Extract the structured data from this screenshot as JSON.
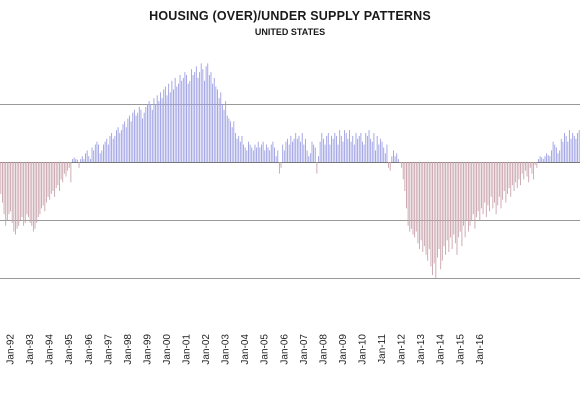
{
  "chart_data": {
    "type": "bar",
    "title": "HOUSING (OVER)/UNDER SUPPLY PATTERNS",
    "subtitle": "UNITED STATES",
    "xlabel": "",
    "ylabel": "",
    "x_tick_labels": [
      "Jan-92",
      "Jan-93",
      "Jan-94",
      "Jan-95",
      "Jan-96",
      "Jan-97",
      "Jan-98",
      "Jan-99",
      "Jan-00",
      "Jan-01",
      "Jan-02",
      "Jan-03",
      "Jan-04",
      "Jan-05",
      "Jan-06",
      "Jan-07",
      "Jan-08",
      "Jan-09",
      "Jan-10",
      "Jan-11",
      "Jan-12",
      "Jan-13",
      "Jan-14",
      "Jan-15",
      "Jan-16"
    ],
    "x_range": [
      "Jul-1991",
      "Dec-2016"
    ],
    "ylim": [
      -3,
      2
    ],
    "gridlines_y": [
      1,
      0,
      -1,
      -2
    ],
    "y_tick_labels_visible": false,
    "grid": true,
    "legend": "none",
    "colors": {
      "positive": "#9d9fe4",
      "negative": "#c9a3ad",
      "grid": "#777777"
    },
    "series": [
      {
        "frequency": "monthly",
        "start": "1991-07",
        "values": [
          -0.55,
          -0.7,
          -0.9,
          -1.1,
          -1.0,
          -0.9,
          -0.85,
          -1.05,
          -1.2,
          -1.25,
          -1.15,
          -1.1,
          -1.0,
          -0.95,
          -1.1,
          -1.05,
          -0.9,
          -0.95,
          -1.05,
          -1.1,
          -1.2,
          -1.15,
          -1.05,
          -0.95,
          -0.9,
          -0.8,
          -0.75,
          -0.85,
          -0.7,
          -0.6,
          -0.65,
          -0.55,
          -0.5,
          -0.6,
          -0.45,
          -0.4,
          -0.5,
          -0.3,
          -0.35,
          -0.2,
          -0.25,
          -0.15,
          -0.1,
          -0.35,
          0.05,
          0.08,
          0.05,
          0.04,
          -0.1,
          0.05,
          0.1,
          0.05,
          0.15,
          0.2,
          0.1,
          0.05,
          0.25,
          0.2,
          0.3,
          0.35,
          0.3,
          0.15,
          0.2,
          0.3,
          0.35,
          0.4,
          0.3,
          0.45,
          0.5,
          0.4,
          0.45,
          0.55,
          0.6,
          0.5,
          0.55,
          0.65,
          0.7,
          0.6,
          0.75,
          0.8,
          0.7,
          0.85,
          0.9,
          0.8,
          0.85,
          0.95,
          0.9,
          0.75,
          0.85,
          0.95,
          1.0,
          1.05,
          1.0,
          0.9,
          1.1,
          1.0,
          1.15,
          1.05,
          1.2,
          1.1,
          1.25,
          1.3,
          1.15,
          1.35,
          1.2,
          1.4,
          1.25,
          1.45,
          1.3,
          1.35,
          1.5,
          1.4,
          1.45,
          1.55,
          1.5,
          1.35,
          1.4,
          1.6,
          1.5,
          1.55,
          1.65,
          1.45,
          1.55,
          1.7,
          1.6,
          1.4,
          1.65,
          1.7,
          1.5,
          1.55,
          1.35,
          1.45,
          1.3,
          1.25,
          1.1,
          1.2,
          1.0,
          0.9,
          1.05,
          0.8,
          0.75,
          0.7,
          0.6,
          0.7,
          0.5,
          0.4,
          0.45,
          0.35,
          0.45,
          0.3,
          0.25,
          0.2,
          0.35,
          0.3,
          0.25,
          0.2,
          0.3,
          0.25,
          0.35,
          0.25,
          0.3,
          0.35,
          0.2,
          0.3,
          0.25,
          0.2,
          0.3,
          0.35,
          0.25,
          0.1,
          0.2,
          -0.2,
          -0.1,
          0.3,
          0.2,
          0.35,
          0.4,
          0.3,
          0.45,
          0.35,
          0.4,
          0.5,
          0.4,
          0.45,
          0.35,
          0.5,
          0.3,
          0.4,
          0.2,
          0.1,
          0.15,
          0.35,
          0.3,
          0.25,
          -0.2,
          0.1,
          0.35,
          0.5,
          0.4,
          0.3,
          0.45,
          0.5,
          0.3,
          0.45,
          0.4,
          0.5,
          0.45,
          0.3,
          0.55,
          0.45,
          0.35,
          0.55,
          0.5,
          0.4,
          0.55,
          0.35,
          0.45,
          0.3,
          0.5,
          0.4,
          0.45,
          0.5,
          0.35,
          0.3,
          0.5,
          0.45,
          0.55,
          0.4,
          0.35,
          0.5,
          0.2,
          0.45,
          0.3,
          0.4,
          0.35,
          0.25,
          0.15,
          0.3,
          -0.1,
          -0.15,
          0.1,
          0.2,
          0.1,
          0.15,
          0.05,
          -0.02,
          -0.1,
          -0.3,
          -0.5,
          -0.8,
          -1.1,
          -1.2,
          -1.15,
          -1.25,
          -1.3,
          -1.2,
          -1.4,
          -1.5,
          -1.35,
          -1.55,
          -1.45,
          -1.6,
          -1.7,
          -1.5,
          -1.8,
          -1.95,
          -1.75,
          -2.0,
          -1.65,
          -1.5,
          -1.85,
          -1.7,
          -1.45,
          -1.6,
          -1.35,
          -1.55,
          -1.3,
          -1.5,
          -1.25,
          -1.4,
          -1.6,
          -1.3,
          -1.2,
          -1.45,
          -1.1,
          -1.3,
          -1.0,
          -1.2,
          -1.1,
          -1.0,
          -0.9,
          -1.15,
          -0.95,
          -0.85,
          -1.0,
          -0.8,
          -0.9,
          -0.7,
          -0.95,
          -0.75,
          -0.85,
          -0.6,
          -0.8,
          -0.7,
          -0.9,
          -0.75,
          -0.6,
          -0.8,
          -0.65,
          -0.5,
          -0.7,
          -0.55,
          -0.45,
          -0.6,
          -0.4,
          -0.5,
          -0.35,
          -0.45,
          -0.3,
          -0.4,
          -0.2,
          -0.3,
          -0.15,
          -0.25,
          -0.35,
          -0.1,
          -0.2,
          -0.3,
          -0.05,
          -0.1,
          0.05,
          0.1,
          0.08,
          0.05,
          0.1,
          0.15,
          0.12,
          0.1,
          0.2,
          0.35,
          0.3,
          0.25,
          0.15,
          0.2,
          0.4,
          0.35,
          0.5,
          0.45,
          0.35,
          0.55,
          0.4,
          0.5,
          0.45,
          0.4,
          0.5,
          0.55
        ]
      }
    ]
  }
}
